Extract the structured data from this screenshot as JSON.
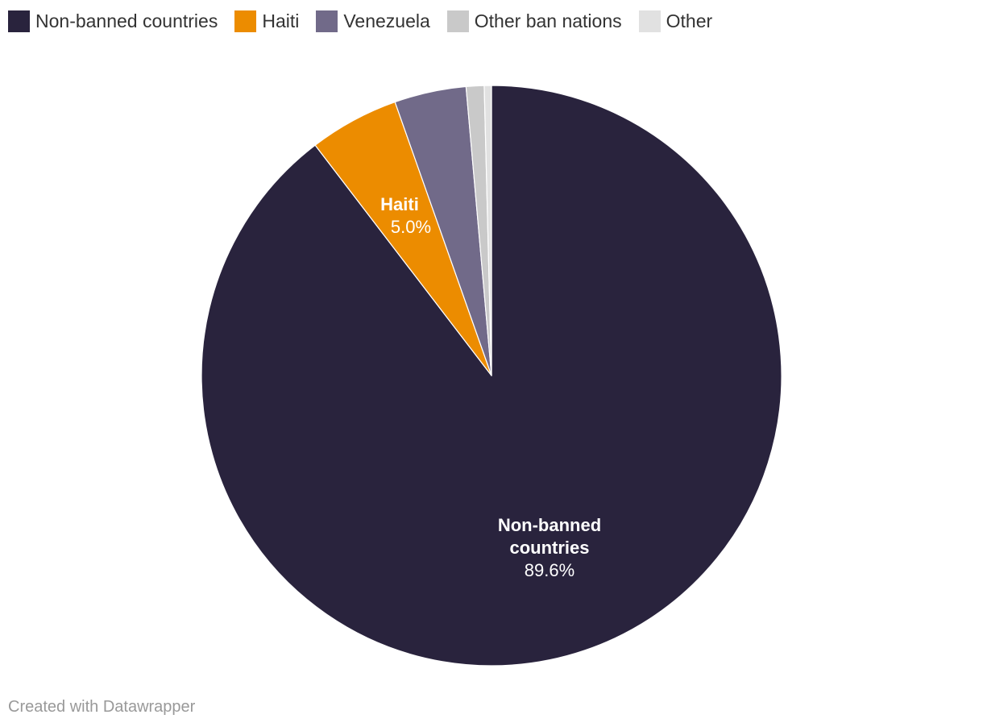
{
  "chart_data": {
    "type": "pie",
    "categories": [
      "Non-banned countries",
      "Haiti",
      "Venezuela",
      "Other ban nations",
      "Other"
    ],
    "values": [
      89.6,
      5.0,
      4.0,
      1.0,
      0.4
    ],
    "unit": "%",
    "colors": [
      "#29233d",
      "#ec8c00",
      "#716a89",
      "#c9c9c9",
      "#e1e1e1"
    ],
    "legend_position": "top-left",
    "data_labels": [
      {
        "category": "Non-banned countries",
        "name_lines": [
          "Non-banned",
          "countries"
        ],
        "value_text": "89.6%"
      },
      {
        "category": "Haiti",
        "name_lines": [
          "Haiti"
        ],
        "value_text": "5.0%"
      }
    ]
  },
  "footer": {
    "credit": "Created with Datawrapper"
  }
}
